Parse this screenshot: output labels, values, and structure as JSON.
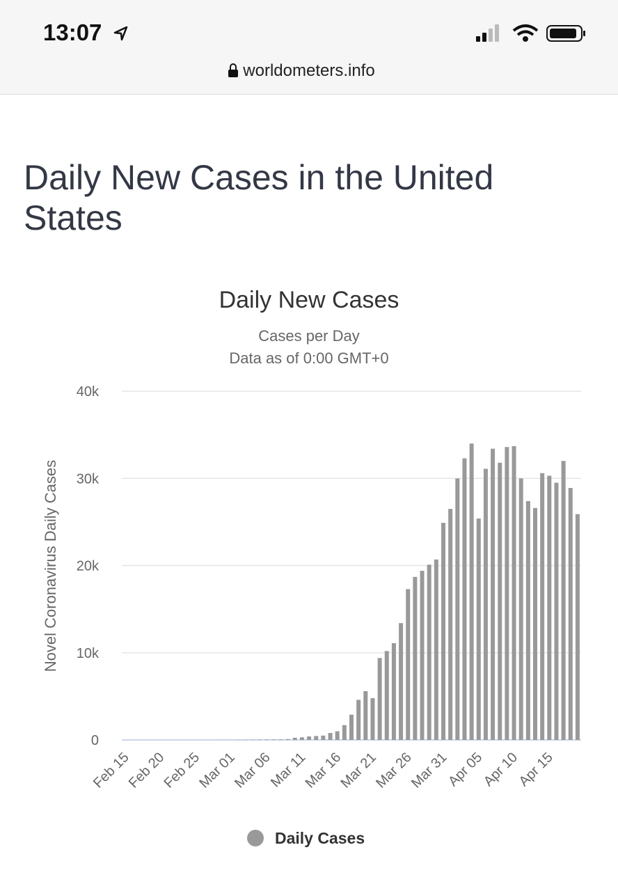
{
  "status_bar": {
    "time": "13:07",
    "url": "worldometers.info"
  },
  "page": {
    "heading": "Daily New Cases in the United States"
  },
  "chart_data": {
    "type": "bar",
    "title": "Daily New Cases",
    "subtitle": [
      "Cases per Day",
      "Data as of 0:00 GMT+0"
    ],
    "y_label": "Novel Coronavirus Daily Cases",
    "legend": "Daily Cases",
    "color": "#999999",
    "categories": [
      "Feb 15",
      null,
      null,
      null,
      null,
      "Feb 20",
      null,
      null,
      null,
      null,
      "Feb 25",
      null,
      null,
      null,
      null,
      "Mar 01",
      null,
      null,
      null,
      null,
      "Mar 06",
      null,
      null,
      null,
      null,
      "Mar 11",
      null,
      null,
      null,
      null,
      "Mar 16",
      null,
      null,
      null,
      null,
      "Mar 21",
      null,
      null,
      null,
      null,
      "Mar 26",
      null,
      null,
      null,
      null,
      "Mar 31",
      null,
      null,
      null,
      null,
      "Apr 05",
      null,
      null,
      null,
      null,
      "Apr 10",
      null,
      null,
      null,
      null,
      "Apr 15",
      null,
      null,
      null,
      null
    ],
    "values": [
      0,
      0,
      0,
      0,
      0,
      0,
      0,
      0,
      0,
      0,
      0,
      0,
      0,
      0,
      5,
      10,
      20,
      25,
      30,
      40,
      50,
      60,
      70,
      100,
      250,
      300,
      400,
      450,
      500,
      800,
      1000,
      1700,
      2900,
      4600,
      5600,
      4800,
      9400,
      10200,
      11100,
      13400,
      17300,
      18700,
      19400,
      20100,
      20700,
      24900,
      26500,
      30000,
      32300,
      34000,
      25400,
      31100,
      33400,
      31800,
      33600,
      33700,
      30000,
      27400,
      26600,
      30600,
      30300,
      29500,
      32000,
      28900,
      25900
    ],
    "ylim": [
      0,
      40000
    ],
    "yticks": [
      0,
      {
        "value": 10000,
        "label": "10k"
      },
      {
        "value": 20000,
        "label": "20k"
      },
      {
        "value": 30000,
        "label": "30k"
      },
      {
        "value": 40000,
        "label": "40k"
      }
    ],
    "grid": true
  }
}
